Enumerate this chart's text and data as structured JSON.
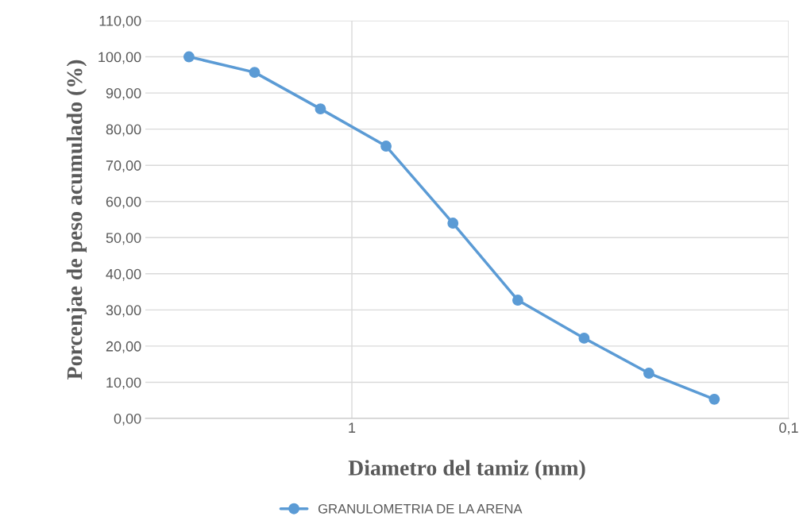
{
  "chart_data": {
    "type": "line",
    "xlabel": "Diametro del tamiz (mm)",
    "ylabel": "Porcenjae de peso acumulado (%)",
    "x": [
      2.36,
      1.67,
      1.18,
      0.835,
      0.587,
      0.417,
      0.294,
      0.209,
      0.148
    ],
    "series": [
      {
        "name": "GRANULOMETRIA DE LA ARENA",
        "color": "#5b9bd5",
        "values": [
          100.0,
          95.7,
          85.6,
          75.3,
          54.0,
          32.7,
          22.2,
          12.5,
          5.3
        ]
      }
    ],
    "log": "x",
    "xlim": [
      2.97,
      0.1
    ],
    "xticks": [
      {
        "value": 1,
        "label": "1"
      },
      {
        "value": 0.1,
        "label": "0,1"
      }
    ],
    "ylim": [
      0,
      110
    ],
    "yticks": [
      {
        "value": 0,
        "label": "0,00"
      },
      {
        "value": 10,
        "label": "10,00"
      },
      {
        "value": 20,
        "label": "20,00"
      },
      {
        "value": 30,
        "label": "30,00"
      },
      {
        "value": 40,
        "label": "40,00"
      },
      {
        "value": 50,
        "label": "50,00"
      },
      {
        "value": 60,
        "label": "60,00"
      },
      {
        "value": 70,
        "label": "70,00"
      },
      {
        "value": 80,
        "label": "80,00"
      },
      {
        "value": 90,
        "label": "90,00"
      },
      {
        "value": 100,
        "label": "100,00"
      },
      {
        "value": 110,
        "label": "110,00"
      }
    ],
    "grid": true,
    "legend": "bottom",
    "marker": "circle",
    "line_style": "solid"
  }
}
